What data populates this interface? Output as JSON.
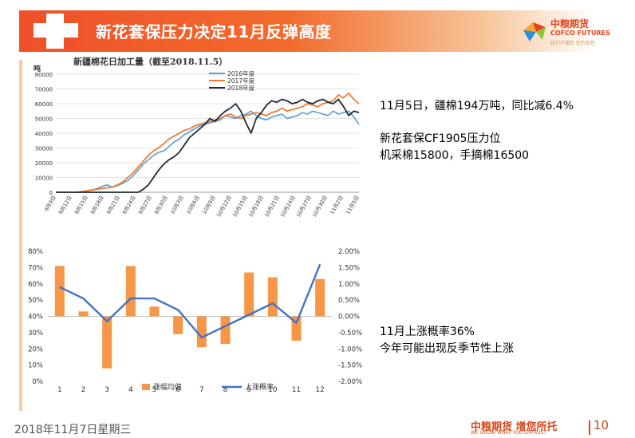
{
  "header": {
    "title": "新花套保压力决定11月反弹高度"
  },
  "logo": {
    "name_cn": "中粮期货",
    "name_en": "COFCO FUTURES",
    "tagline": "我们不辜负 您的信任"
  },
  "notes": {
    "line1": "11月5日，疆棉194万吨，同比减6.4%",
    "line2": "新花套保CF1905压力位",
    "line3": "机采棉15800，手摘棉16500",
    "line4": "11月上涨概率36%",
    "line5": "今年可能出现反季节性上涨"
  },
  "footer": {
    "date": "2018年11月7日星期三",
    "brand": "中粮期货 增您所托",
    "brand_en": "WE GROW WHAT YOU ENTRUST",
    "page": "10"
  },
  "colors": {
    "accent": "#f0502a",
    "s2016": "#5b9bd5",
    "s2017": "#ed7d31",
    "s2018": "#1f2937",
    "bar": "#f79646",
    "line": "#4472c4"
  },
  "chart_data": [
    {
      "type": "line",
      "title": "新疆棉花日加工量（截至2018.11.5）",
      "ylabel": "吨",
      "ylim": [
        0,
        80000
      ],
      "yticks": [
        0,
        10000,
        20000,
        30000,
        40000,
        50000,
        60000,
        70000,
        80000
      ],
      "xticks": [
        "9月9日",
        "9月12日",
        "9月15日",
        "9月18日",
        "9月21日",
        "9月24日",
        "9月27日",
        "9月30日",
        "10月3日",
        "10月6日",
        "10月9日",
        "10月12日",
        "10月15日",
        "10月18日",
        "10月21日",
        "10月24日",
        "10月27日",
        "10月30日",
        "11月2日",
        "11月5日"
      ],
      "legend_position": "top-center",
      "series": [
        {
          "name": "2016年度",
          "values": [
            0,
            0,
            0,
            0,
            0,
            300,
            800,
            1500,
            2500,
            4000,
            5000,
            3500,
            4500,
            6000,
            8000,
            11000,
            15000,
            19000,
            22000,
            25000,
            27000,
            28000,
            31000,
            34000,
            36000,
            39000,
            41000,
            43000,
            45000,
            46000,
            47000,
            48000,
            49000,
            52000,
            51000,
            50000,
            52000,
            53000,
            55000,
            52000,
            50000,
            49000,
            51000,
            52000,
            53000,
            50000,
            51000,
            52000,
            54000,
            53000,
            55000,
            54000,
            53000,
            52000,
            55000,
            53000,
            54000,
            55000,
            51000,
            46000
          ]
        },
        {
          "name": "2017年度",
          "values": [
            0,
            0,
            0,
            0,
            0,
            500,
            1000,
            1500,
            2000,
            2500,
            3000,
            3500,
            5000,
            7000,
            10000,
            13000,
            17000,
            21000,
            25000,
            28000,
            30000,
            33000,
            36000,
            38000,
            40000,
            42000,
            43000,
            45000,
            46000,
            47000,
            48000,
            49000,
            50000,
            52000,
            53000,
            51000,
            50000,
            52000,
            53000,
            54000,
            53000,
            52000,
            54000,
            55000,
            57000,
            55000,
            56000,
            57000,
            58000,
            60000,
            59000,
            58000,
            60000,
            61000,
            62000,
            66000,
            64000,
            67000,
            63000,
            60000
          ]
        },
        {
          "name": "2018年度",
          "values": [
            0,
            0,
            0,
            0,
            0,
            0,
            0,
            0,
            0,
            0,
            0,
            0,
            0,
            0,
            0,
            0,
            0,
            2000,
            5000,
            10000,
            15000,
            19000,
            22000,
            24000,
            27000,
            32000,
            37000,
            40000,
            43000,
            46000,
            50000,
            48000,
            52000,
            55000,
            57000,
            60000,
            55000,
            47000,
            40000,
            50000,
            54000,
            59000,
            62000,
            61000,
            63000,
            62000,
            60000,
            61000,
            63000,
            61000,
            60000,
            62000,
            63000,
            61000,
            60000,
            63000,
            58000,
            52000,
            55000,
            54000
          ]
        }
      ]
    },
    {
      "type": "bar",
      "categories": [
        "1",
        "2",
        "3",
        "4",
        "5",
        "6",
        "7",
        "8",
        "9",
        "10",
        "11",
        "12"
      ],
      "left_axis": {
        "ylim": [
          0,
          0.8
        ],
        "ticks": [
          "0%",
          "10%",
          "20%",
          "30%",
          "40%",
          "50%",
          "60%",
          "70%",
          "80%"
        ],
        "baseline": 0.4
      },
      "right_axis": {
        "ylim": [
          -0.02,
          0.02
        ],
        "ticks": [
          "-2.00%",
          "-1.50%",
          "-1.00%",
          "-0.50%",
          "0.00%",
          "0.50%",
          "1.00%",
          "1.50%",
          "2.00%"
        ]
      },
      "legend_position": "bottom",
      "series": [
        {
          "name": "涨幅均值",
          "type": "bar",
          "axis": "right",
          "values": [
            0.0155,
            0.0015,
            -0.016,
            0.0155,
            0.003,
            -0.0055,
            -0.0095,
            -0.0085,
            0.0135,
            0.012,
            -0.0075,
            0.0115
          ]
        },
        {
          "name": "上涨概率",
          "type": "line",
          "axis": "left",
          "values": [
            0.58,
            0.51,
            0.37,
            0.51,
            0.51,
            0.44,
            0.27,
            0.34,
            0.41,
            0.48,
            0.36,
            0.72
          ]
        }
      ]
    }
  ]
}
